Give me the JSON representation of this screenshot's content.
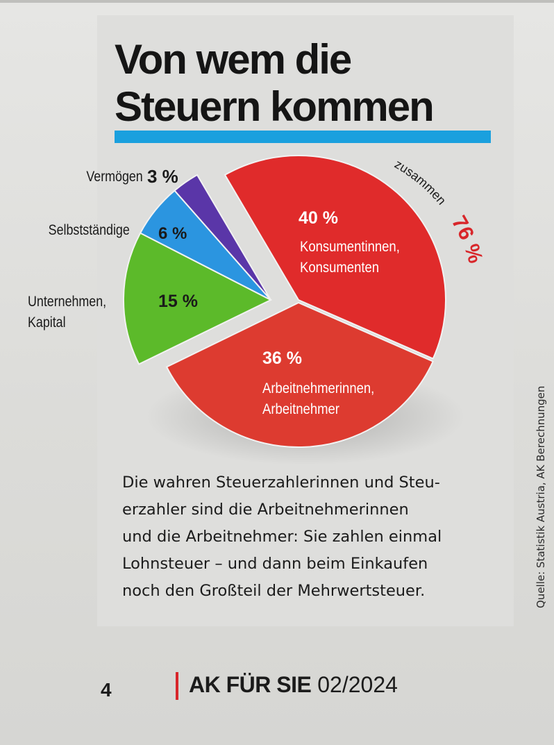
{
  "title_line1": "Von wem die",
  "title_line2": "Steuern kommen",
  "colors": {
    "accent_bar": "#1aa0de",
    "footer_separator": "#d8262a"
  },
  "chart_data": {
    "type": "pie",
    "title": "Von wem die Steuern kommen",
    "slices": [
      {
        "label": "Konsumentinnen, Konsumenten",
        "label_line1": "Konsumentinnen,",
        "label_line2": "Konsumenten",
        "value": 40,
        "value_label": "40 %",
        "color": "#e02b2b"
      },
      {
        "label": "Arbeitnehmerinnen, Arbeitnehmer",
        "label_line1": "Arbeitnehmerinnen,",
        "label_line2": "Arbeitnehmer",
        "value": 36,
        "value_label": "36 %",
        "color": "#dd3b30"
      },
      {
        "label": "Unternehmen, Kapital",
        "label_line1": "Unternehmen,",
        "label_line2": "Kapital",
        "value": 15,
        "value_label": "15 %",
        "color": "#5cba2a"
      },
      {
        "label": "Selbstständige",
        "value": 6,
        "value_label": "6 %",
        "color": "#2b95e0"
      },
      {
        "label": "Vermögen",
        "value": 3,
        "value_label": "3 %",
        "color": "#5a36a8"
      }
    ],
    "annotation": {
      "text": "zusammen",
      "value_label": "76 %"
    }
  },
  "body_lines": [
    "Die wahren Steuerzahlerinnen und Steu-",
    "erzahler sind die Arbeitnehmerinnen",
    "und die Arbeitnehmer: Sie zahlen einmal",
    "Lohnsteuer – und dann beim Einkaufen",
    "noch den Großteil der Mehrwertsteuer."
  ],
  "source": "Quelle: Statistik Austria, AK Berechnungen",
  "footer": {
    "page_number": "4",
    "magazine_name": "AK FÜR SIE",
    "issue": "02/2024"
  }
}
